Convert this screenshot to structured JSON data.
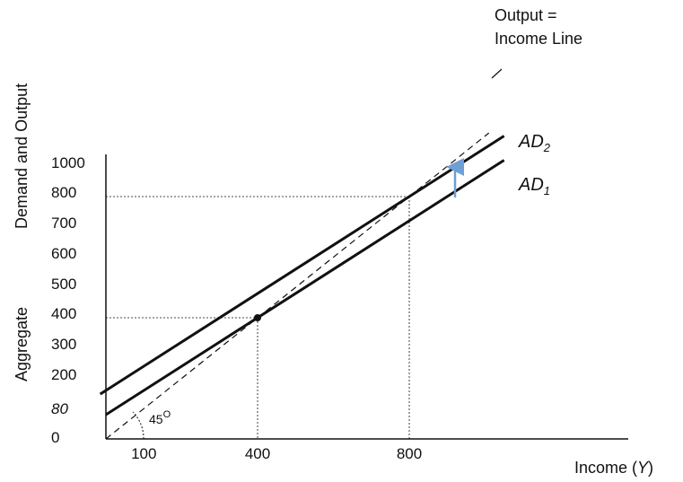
{
  "chart_data": {
    "type": "line",
    "title": "",
    "xlabel": {
      "main": "Income",
      "var": "Y"
    },
    "ylabel": {
      "line1": "Aggregate",
      "line2": "Demand and Output"
    },
    "x_ticks": [
      "100",
      "400",
      "800"
    ],
    "y_ticks": [
      "0",
      "80",
      "200",
      "300",
      "400",
      "500",
      "600",
      "700",
      "800",
      "1000"
    ],
    "series": [
      {
        "name": "Output = Income Line",
        "label_line1": "Output =",
        "label_line2": "Income Line",
        "style": "dashed",
        "points": [
          [
            0,
            0
          ],
          [
            1000,
            1000
          ]
        ]
      },
      {
        "name": "AD1",
        "label_main": "AD",
        "label_sub": "1",
        "style": "solid",
        "points": [
          [
            0,
            80
          ],
          [
            1000,
            880
          ]
        ]
      },
      {
        "name": "AD2",
        "label_main": "AD",
        "label_sub": "2",
        "style": "solid",
        "points": [
          [
            0,
            160
          ],
          [
            1000,
            960
          ]
        ]
      }
    ],
    "equilibria": [
      {
        "x": 400,
        "y": 400
      },
      {
        "x": 800,
        "y": 800
      }
    ],
    "annotations": {
      "angle": "45",
      "angle_unit": "O",
      "shift_arrow": "AD1 to AD2"
    },
    "colors": {
      "ink": "#111111",
      "arrow": "#6f9fd4"
    }
  }
}
